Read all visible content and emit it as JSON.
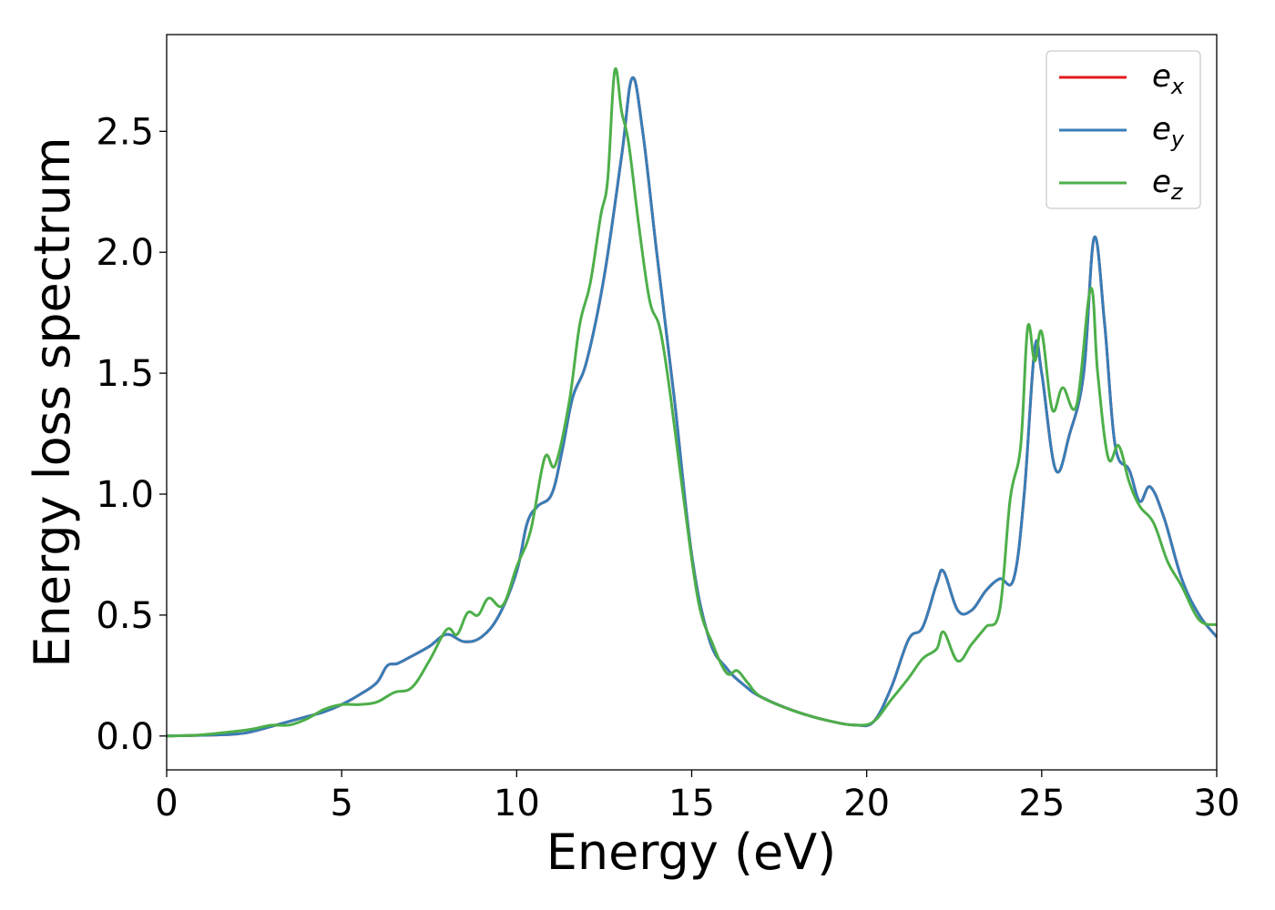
{
  "chart_data": {
    "type": "line",
    "title": "",
    "xlabel": "Energy (eV)",
    "ylabel": "Energy loss spectrum",
    "xlim": [
      0,
      30
    ],
    "ylim": [
      -0.14,
      2.9
    ],
    "xticks": [
      0,
      5,
      10,
      15,
      20,
      25,
      30
    ],
    "xtick_labels": [
      "0",
      "5",
      "10",
      "15",
      "20",
      "25",
      "30"
    ],
    "yticks": [
      0.0,
      0.5,
      1.0,
      1.5,
      2.0,
      2.5
    ],
    "ytick_labels": [
      "0.0",
      "0.5",
      "1.0",
      "1.5",
      "2.0",
      "2.5"
    ],
    "grid": false,
    "legend_position": "top-right",
    "series": [
      {
        "name": "e_x",
        "label_main": "e",
        "label_sub": "x",
        "color": "#e41a1c",
        "x": [
          0,
          1,
          2,
          2.5,
          3,
          3.5,
          4,
          4.5,
          5,
          5.5,
          6,
          6.3,
          6.6,
          7,
          7.5,
          8,
          8.5,
          9,
          9.5,
          10,
          10.3,
          10.6,
          11,
          11.3,
          11.6,
          12,
          12.5,
          13,
          13.3,
          13.6,
          14,
          14.5,
          15,
          15.5,
          16,
          16.5,
          17,
          18,
          19,
          19.7,
          20.2,
          20.7,
          21.2,
          21.6,
          22,
          22.2,
          22.6,
          23,
          23.4,
          23.8,
          24.2,
          24.5,
          24.8,
          25,
          25.4,
          25.8,
          26.2,
          26.5,
          26.8,
          27.1,
          27.5,
          27.8,
          28.1,
          28.5,
          29,
          29.5,
          30
        ],
        "y": [
          0,
          0.003,
          0.008,
          0.02,
          0.04,
          0.06,
          0.08,
          0.1,
          0.13,
          0.17,
          0.22,
          0.29,
          0.3,
          0.33,
          0.37,
          0.42,
          0.39,
          0.41,
          0.5,
          0.68,
          0.88,
          0.95,
          1.0,
          1.18,
          1.4,
          1.55,
          1.9,
          2.4,
          2.72,
          2.5,
          2.0,
          1.4,
          0.75,
          0.4,
          0.28,
          0.21,
          0.16,
          0.1,
          0.06,
          0.045,
          0.06,
          0.2,
          0.4,
          0.45,
          0.63,
          0.68,
          0.52,
          0.52,
          0.6,
          0.65,
          0.65,
          1.0,
          1.6,
          1.5,
          1.1,
          1.25,
          1.5,
          2.06,
          1.7,
          1.2,
          1.1,
          0.97,
          1.03,
          0.9,
          0.65,
          0.5,
          0.41
        ]
      },
      {
        "name": "e_y",
        "label_main": "e",
        "label_sub": "y",
        "color": "#377eb8",
        "x": [
          0,
          1,
          2,
          2.5,
          3,
          3.5,
          4,
          4.5,
          5,
          5.5,
          6,
          6.3,
          6.6,
          7,
          7.5,
          8,
          8.5,
          9,
          9.5,
          10,
          10.3,
          10.6,
          11,
          11.3,
          11.6,
          12,
          12.5,
          13,
          13.3,
          13.6,
          14,
          14.5,
          15,
          15.5,
          16,
          16.5,
          17,
          18,
          19,
          19.7,
          20.2,
          20.7,
          21.2,
          21.6,
          22,
          22.2,
          22.6,
          23,
          23.4,
          23.8,
          24.2,
          24.5,
          24.8,
          25,
          25.4,
          25.8,
          26.2,
          26.5,
          26.8,
          27.1,
          27.5,
          27.8,
          28.1,
          28.5,
          29,
          29.5,
          30
        ],
        "y": [
          0,
          0.003,
          0.008,
          0.02,
          0.04,
          0.06,
          0.08,
          0.1,
          0.13,
          0.17,
          0.22,
          0.29,
          0.3,
          0.33,
          0.37,
          0.42,
          0.39,
          0.41,
          0.5,
          0.68,
          0.88,
          0.95,
          1.0,
          1.18,
          1.4,
          1.55,
          1.9,
          2.4,
          2.72,
          2.5,
          2.0,
          1.4,
          0.75,
          0.4,
          0.28,
          0.21,
          0.16,
          0.1,
          0.06,
          0.045,
          0.06,
          0.2,
          0.4,
          0.45,
          0.63,
          0.68,
          0.52,
          0.52,
          0.6,
          0.65,
          0.65,
          1.0,
          1.6,
          1.5,
          1.1,
          1.25,
          1.5,
          2.06,
          1.7,
          1.2,
          1.1,
          0.97,
          1.03,
          0.9,
          0.65,
          0.5,
          0.41
        ]
      },
      {
        "name": "e_z",
        "label_main": "e",
        "label_sub": "z",
        "color": "#4daf4a",
        "x": [
          0,
          1,
          2,
          2.5,
          3,
          3.5,
          4,
          4.5,
          5,
          5.5,
          6,
          6.5,
          7,
          7.5,
          8,
          8.3,
          8.6,
          8.9,
          9.2,
          9.6,
          10,
          10.4,
          10.8,
          11.1,
          11.5,
          11.8,
          12.1,
          12.4,
          12.6,
          12.8,
          13.0,
          13.2,
          13.5,
          13.8,
          14.1,
          14.4,
          14.8,
          15.2,
          15.6,
          16,
          16.3,
          16.6,
          17,
          18,
          19,
          19.7,
          20.2,
          20.7,
          21.2,
          21.6,
          22,
          22.2,
          22.6,
          23,
          23.4,
          23.8,
          24.1,
          24.4,
          24.6,
          24.8,
          25,
          25.3,
          25.6,
          26,
          26.4,
          26.6,
          26.9,
          27.2,
          27.5,
          27.8,
          28.2,
          28.6,
          29,
          29.5,
          30
        ],
        "y": [
          0,
          0.005,
          0.02,
          0.03,
          0.045,
          0.045,
          0.07,
          0.11,
          0.13,
          0.13,
          0.14,
          0.18,
          0.2,
          0.31,
          0.44,
          0.42,
          0.51,
          0.5,
          0.57,
          0.54,
          0.7,
          0.85,
          1.15,
          1.12,
          1.38,
          1.7,
          1.87,
          2.15,
          2.3,
          2.75,
          2.58,
          2.45,
          2.1,
          1.8,
          1.68,
          1.4,
          0.95,
          0.55,
          0.38,
          0.26,
          0.27,
          0.22,
          0.16,
          0.1,
          0.06,
          0.045,
          0.06,
          0.15,
          0.24,
          0.32,
          0.36,
          0.43,
          0.31,
          0.38,
          0.45,
          0.52,
          0.98,
          1.2,
          1.69,
          1.55,
          1.67,
          1.35,
          1.44,
          1.37,
          1.85,
          1.5,
          1.15,
          1.2,
          1.05,
          0.95,
          0.88,
          0.72,
          0.62,
          0.48,
          0.46
        ]
      }
    ]
  }
}
